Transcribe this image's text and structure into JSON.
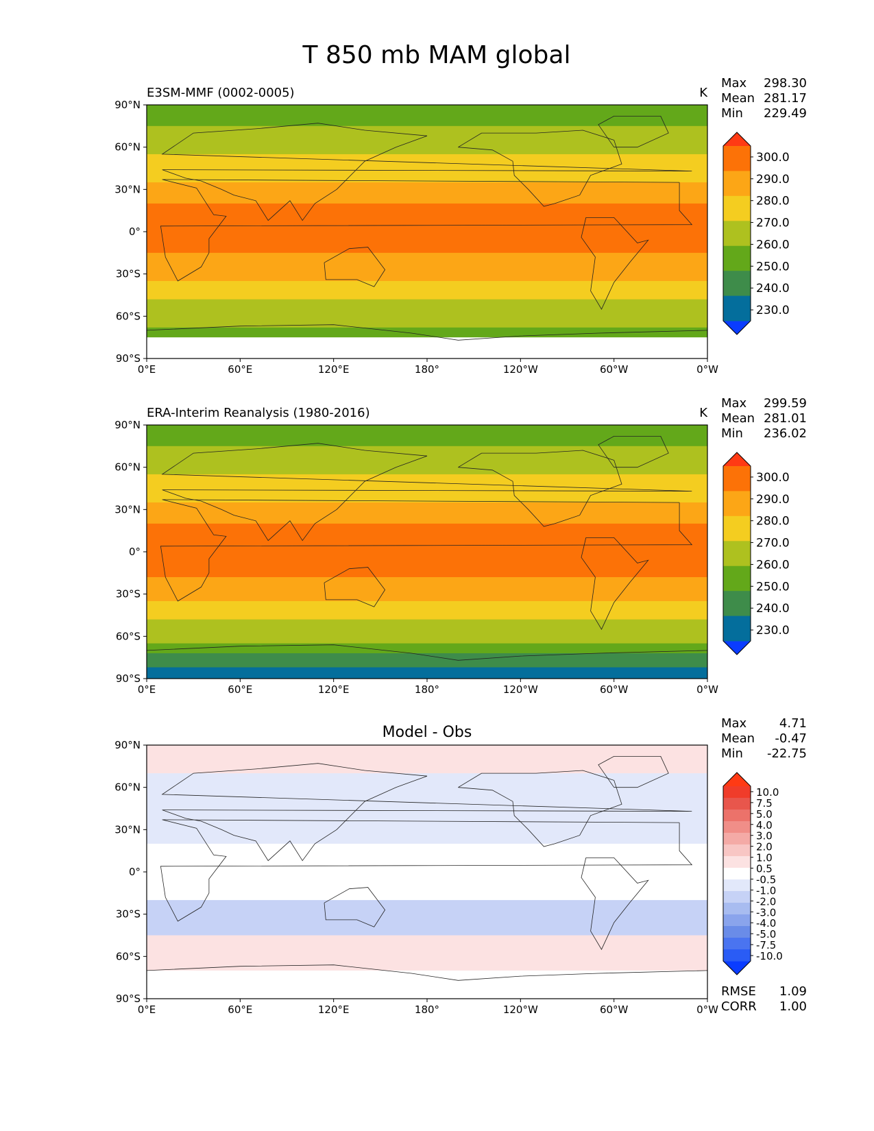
{
  "figure": {
    "title": "T 850 mb MAM global"
  },
  "chart_data": [
    {
      "type": "heatmap",
      "panel": "test",
      "title_left": "E3SM-MMF (0002-0005)",
      "title_center": "",
      "units": "K",
      "x_ticks": [
        "0°E",
        "60°E",
        "120°E",
        "180°",
        "120°W",
        "60°W",
        "0°W"
      ],
      "y_ticks": [
        "90°N",
        "60°N",
        "30°N",
        "0°",
        "30°S",
        "60°S",
        "90°S"
      ],
      "xlim": [
        0,
        360
      ],
      "ylim": [
        -90,
        90
      ],
      "stats": [
        {
          "label": "Max",
          "value": "298.30"
        },
        {
          "label": "Mean",
          "value": "281.17"
        },
        {
          "label": "Min",
          "value": "229.49"
        }
      ],
      "colorbar": {
        "levels": [
          "230.0",
          "240.0",
          "250.0",
          "260.0",
          "270.0",
          "280.0",
          "290.0",
          "300.0"
        ],
        "colors": [
          "#0a3cff",
          "#046e9c",
          "#3e8c4a",
          "#63a81a",
          "#aec11f",
          "#f4cd20",
          "#fca616",
          "#fc7207",
          "#ff3a14"
        ]
      },
      "zonal_bands": [
        {
          "lat_top": 90,
          "lat_bottom": 75,
          "color_index": 3
        },
        {
          "lat_top": 75,
          "lat_bottom": 55,
          "color_index": 4
        },
        {
          "lat_top": 55,
          "lat_bottom": 35,
          "color_index": 5
        },
        {
          "lat_top": 35,
          "lat_bottom": 20,
          "color_index": 6
        },
        {
          "lat_top": 20,
          "lat_bottom": -15,
          "color_index": 7
        },
        {
          "lat_top": -15,
          "lat_bottom": -35,
          "color_index": 6
        },
        {
          "lat_top": -35,
          "lat_bottom": -48,
          "color_index": 5
        },
        {
          "lat_top": -48,
          "lat_bottom": -68,
          "color_index": 4
        },
        {
          "lat_top": -68,
          "lat_bottom": -75,
          "color_index": 3
        },
        {
          "lat_top": -75,
          "lat_bottom": -90,
          "color_index": -1
        }
      ]
    },
    {
      "type": "heatmap",
      "panel": "reference",
      "title_left": "ERA-Interim Reanalysis (1980-2016)",
      "title_center": "",
      "units": "K",
      "x_ticks": [
        "0°E",
        "60°E",
        "120°E",
        "180°",
        "120°W",
        "60°W",
        "0°W"
      ],
      "y_ticks": [
        "90°N",
        "60°N",
        "30°N",
        "0°",
        "30°S",
        "60°S",
        "90°S"
      ],
      "xlim": [
        0,
        360
      ],
      "ylim": [
        -90,
        90
      ],
      "stats": [
        {
          "label": "Max",
          "value": "299.59"
        },
        {
          "label": "Mean",
          "value": "281.01"
        },
        {
          "label": "Min",
          "value": "236.02"
        }
      ],
      "colorbar": {
        "levels": [
          "230.0",
          "240.0",
          "250.0",
          "260.0",
          "270.0",
          "280.0",
          "290.0",
          "300.0"
        ],
        "colors": [
          "#0a3cff",
          "#046e9c",
          "#3e8c4a",
          "#63a81a",
          "#aec11f",
          "#f4cd20",
          "#fca616",
          "#fc7207",
          "#ff3a14"
        ]
      },
      "zonal_bands": [
        {
          "lat_top": 90,
          "lat_bottom": 75,
          "color_index": 3
        },
        {
          "lat_top": 75,
          "lat_bottom": 55,
          "color_index": 4
        },
        {
          "lat_top": 55,
          "lat_bottom": 35,
          "color_index": 5
        },
        {
          "lat_top": 35,
          "lat_bottom": 20,
          "color_index": 6
        },
        {
          "lat_top": 20,
          "lat_bottom": -18,
          "color_index": 7
        },
        {
          "lat_top": -18,
          "lat_bottom": -35,
          "color_index": 6
        },
        {
          "lat_top": -35,
          "lat_bottom": -48,
          "color_index": 5
        },
        {
          "lat_top": -48,
          "lat_bottom": -65,
          "color_index": 4
        },
        {
          "lat_top": -65,
          "lat_bottom": -72,
          "color_index": 3
        },
        {
          "lat_top": -72,
          "lat_bottom": -82,
          "color_index": 2
        },
        {
          "lat_top": -82,
          "lat_bottom": -90,
          "color_index": 1
        }
      ]
    },
    {
      "type": "heatmap",
      "panel": "difference",
      "title_left": "",
      "title_center": "Model - Obs",
      "units": "",
      "x_ticks": [
        "0°E",
        "60°E",
        "120°E",
        "180°",
        "120°W",
        "60°W",
        "0°W"
      ],
      "y_ticks": [
        "90°N",
        "60°N",
        "30°N",
        "0°",
        "30°S",
        "60°S",
        "90°S"
      ],
      "xlim": [
        0,
        360
      ],
      "ylim": [
        -90,
        90
      ],
      "stats": [
        {
          "label": "Max",
          "value": "4.71"
        },
        {
          "label": "Mean",
          "value": "-0.47"
        },
        {
          "label": "Min",
          "value": "-22.75"
        }
      ],
      "extra_stats": [
        {
          "label": "RMSE",
          "value": "1.09"
        },
        {
          "label": "CORR",
          "value": "1.00"
        }
      ],
      "colorbar": {
        "levels": [
          "-10.0",
          "-7.5",
          "-5.0",
          "-4.0",
          "-3.0",
          "-2.0",
          "-1.0",
          "-0.5",
          "0.5",
          "1.0",
          "2.0",
          "3.0",
          "4.0",
          "5.0",
          "7.5",
          "10.0"
        ],
        "colors": [
          "#0a3cff",
          "#2a5cf5",
          "#4a74f0",
          "#6a8ce8",
          "#8aa4ec",
          "#a8bcf0",
          "#c6d2f6",
          "#e2e8fa",
          "#ffffff",
          "#fce2e2",
          "#f8c6c4",
          "#f4aaa6",
          "#f08e88",
          "#ec726a",
          "#e8564c",
          "#f03c2a",
          "#ff3a14"
        ]
      },
      "zonal_bands": [
        {
          "lat_top": 90,
          "lat_bottom": 70,
          "color_index": 9
        },
        {
          "lat_top": 70,
          "lat_bottom": 40,
          "color_index": 7
        },
        {
          "lat_top": 40,
          "lat_bottom": 20,
          "color_index": 7
        },
        {
          "lat_top": 20,
          "lat_bottom": 0,
          "color_index": 8
        },
        {
          "lat_top": 0,
          "lat_bottom": -20,
          "color_index": 8
        },
        {
          "lat_top": -20,
          "lat_bottom": -45,
          "color_index": 6
        },
        {
          "lat_top": -45,
          "lat_bottom": -70,
          "color_index": 9
        },
        {
          "lat_top": -70,
          "lat_bottom": -90,
          "color_index": 8
        }
      ]
    }
  ]
}
